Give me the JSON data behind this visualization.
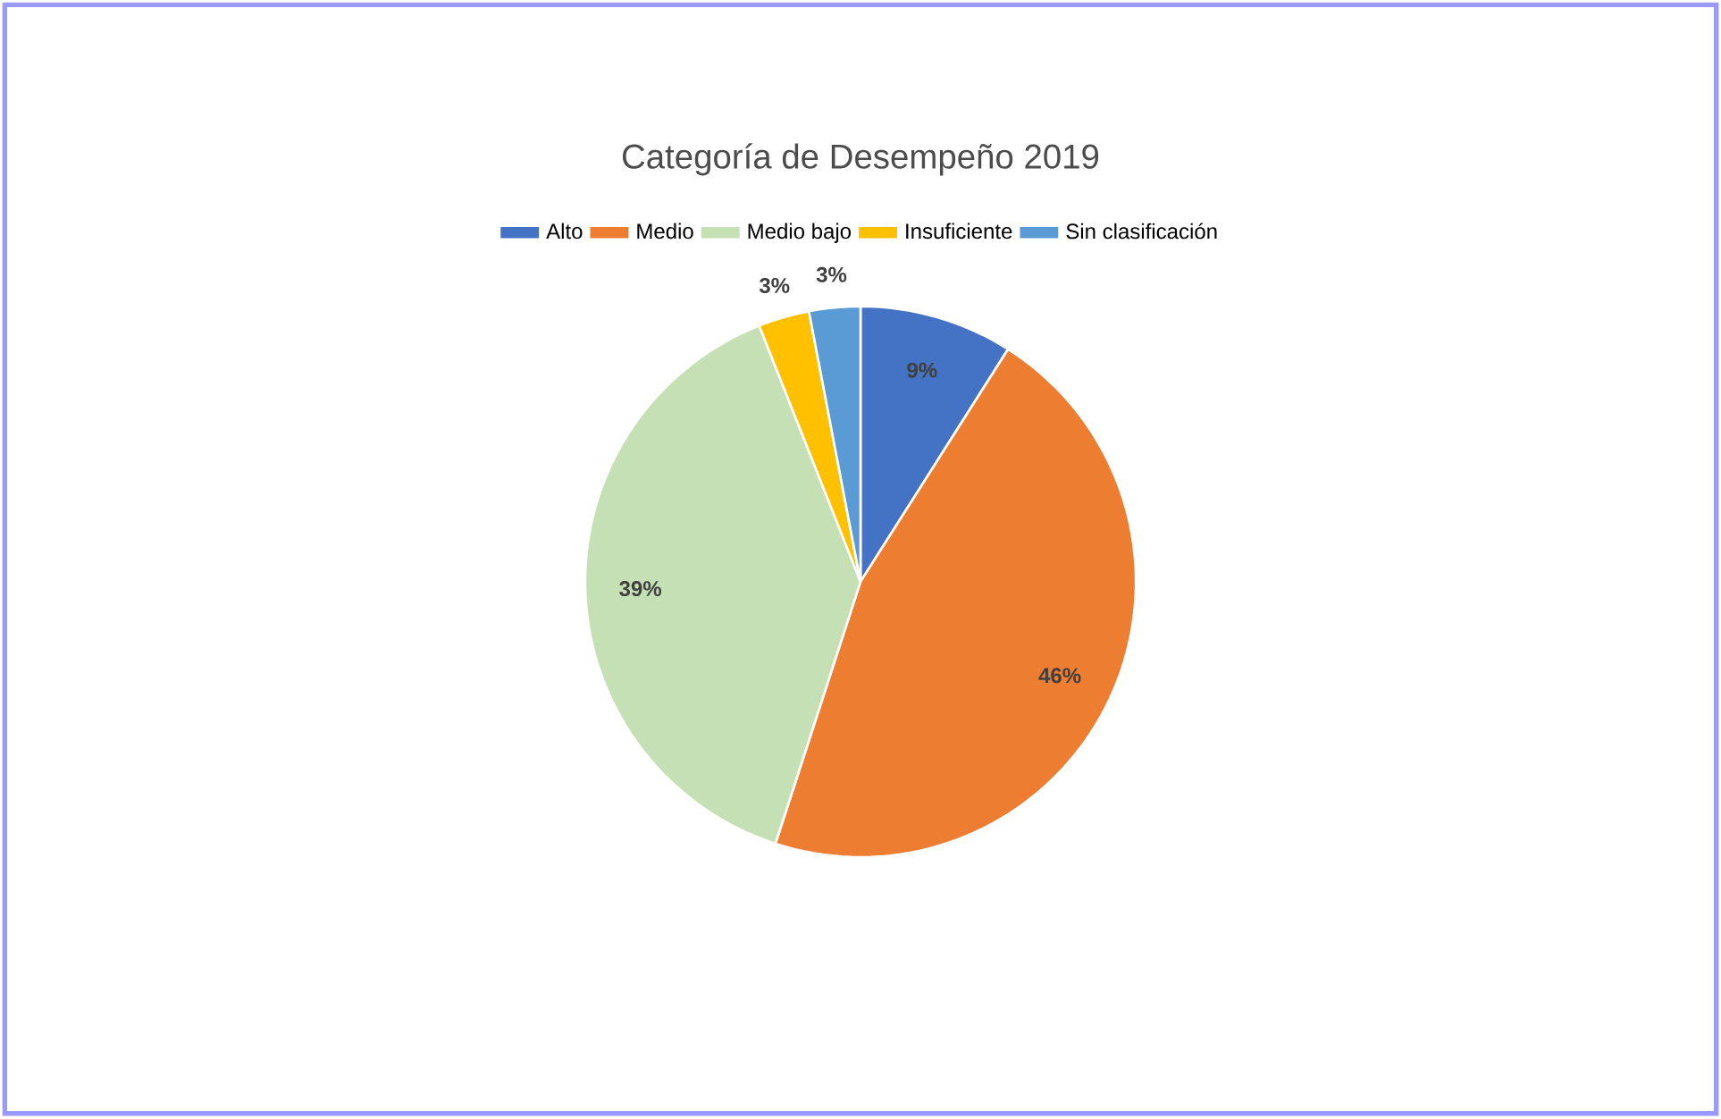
{
  "chart_data": {
    "type": "pie",
    "title": "Categoría de Desempeño 2019",
    "categories": [
      "Alto",
      "Medio",
      "Medio bajo",
      "Insuficiente",
      "Sin clasificación"
    ],
    "values": [
      9,
      46,
      39,
      3,
      3
    ],
    "colors": [
      "#4472c4",
      "#ed7d31",
      "#c5e0b4",
      "#ffc000",
      "#5b9bd5"
    ],
    "value_labels": [
      "9%",
      "46%",
      "39%",
      "3%",
      "3%"
    ],
    "legend": "top"
  }
}
